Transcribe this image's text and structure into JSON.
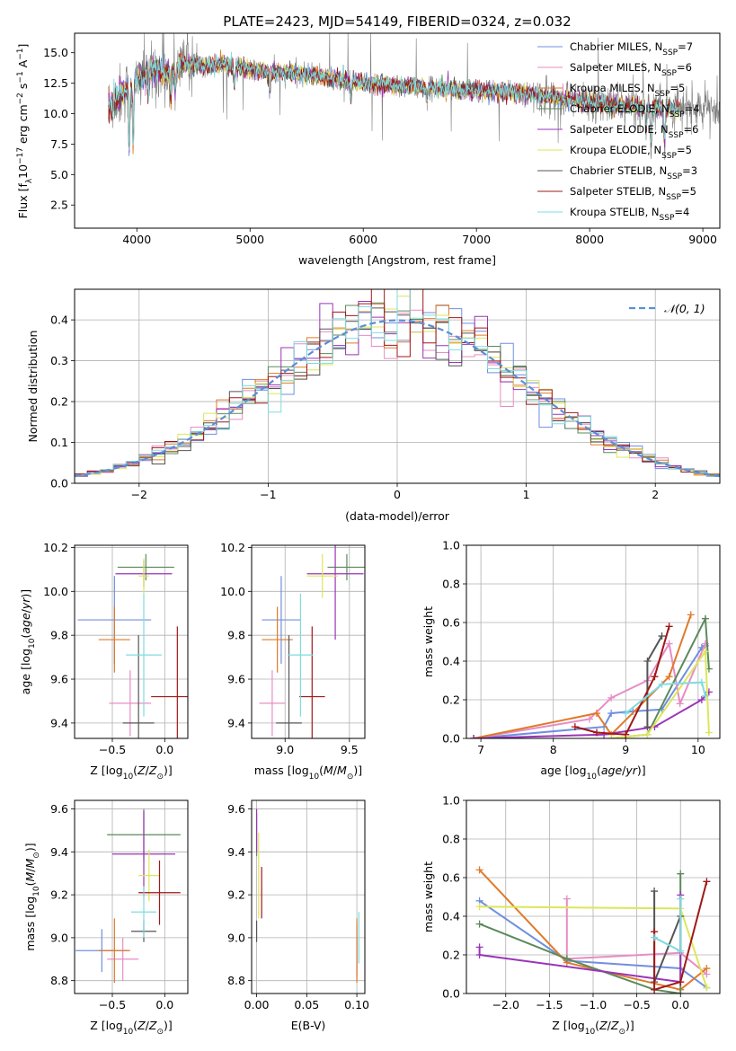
{
  "colors": {
    "Chabrier MILES": "#6f8fe0",
    "Salpeter MILES": "#e88cc4",
    "Kroupa MILES": "#e07a2a",
    "Chabrier ELODIE": "#5c8a5c",
    "Salpeter ELODIE": "#9a34b8",
    "Kroupa ELODIE": "#dde65a",
    "Chabrier STELIB": "#555555",
    "Salpeter STELIB": "#a01818",
    "Kroupa STELIB": "#7fdbe0",
    "data": "#808080",
    "normal": "#5b8ed8"
  },
  "chart_data": [
    {
      "id": "spectrum",
      "type": "line",
      "title": "PLATE=2423, MJD=54149, FIBERID=0324, z=0.032",
      "xlabel": "wavelength [Angstrom, rest frame]",
      "ylabel": "Flux [f_λ 10^-17 erg cm^-2 s^-1 A^-1]",
      "xlim": [
        3450,
        9150
      ],
      "ylim": [
        0.6,
        16.6
      ],
      "xticks": [
        "4000",
        "5000",
        "6000",
        "7000",
        "8000",
        "9000"
      ],
      "yticks": [
        "2.5",
        "5.0",
        "7.5",
        "10.0",
        "12.5",
        "15.0"
      ],
      "legend": [
        {
          "name": "Chabrier MILES",
          "nssp": "7"
        },
        {
          "name": "Salpeter MILES",
          "nssp": "6"
        },
        {
          "name": "Kroupa MILES",
          "nssp": "5"
        },
        {
          "name": "Chabrier ELODIE",
          "nssp": "4"
        },
        {
          "name": "Salpeter ELODIE",
          "nssp": "6"
        },
        {
          "name": "Kroupa ELODIE",
          "nssp": "5"
        },
        {
          "name": "Chabrier STELIB",
          "nssp": "3"
        },
        {
          "name": "Salpeter STELIB",
          "nssp": "5"
        },
        {
          "name": "Kroupa STELIB",
          "nssp": "4"
        }
      ],
      "continuum": [
        [
          3750,
          10.5
        ],
        [
          3850,
          11.5
        ],
        [
          3950,
          12.3
        ],
        [
          4050,
          13.1
        ],
        [
          4150,
          13.6
        ],
        [
          4300,
          13.4
        ],
        [
          4400,
          14.2
        ],
        [
          4600,
          14.0
        ],
        [
          4800,
          14.0
        ],
        [
          5000,
          13.6
        ],
        [
          5200,
          13.4
        ],
        [
          5500,
          13.2
        ],
        [
          5800,
          12.8
        ],
        [
          6000,
          12.5
        ],
        [
          6300,
          12.3
        ],
        [
          6600,
          12.1
        ],
        [
          7000,
          11.9
        ],
        [
          7400,
          11.7
        ],
        [
          7800,
          11.2
        ],
        [
          8200,
          10.7
        ],
        [
          8600,
          10.5
        ],
        [
          9000,
          10.4
        ]
      ],
      "data_range": [
        3750,
        9150
      ],
      "model_range": [
        3750,
        8800
      ]
    },
    {
      "id": "residuals",
      "type": "step-histogram",
      "xlabel": "(data-model)/error",
      "ylabel": "Normed distribution",
      "xlim": [
        -2.5,
        2.5
      ],
      "ylim": [
        0,
        0.475
      ],
      "xticks": [
        "−2",
        "−1",
        "0",
        "1",
        "2"
      ],
      "yticks": [
        "0.0",
        "0.1",
        "0.2",
        "0.3",
        "0.4"
      ],
      "legend": "𝒩(0, 1)",
      "legend_placement": "top-right",
      "bin_width": 0.1
    },
    {
      "id": "age-vs-Z",
      "type": "errorbar",
      "xlabel": "Z [log10(Z/Z⊙)]",
      "ylabel": "age [log10(age/yr)]",
      "xlim": [
        -0.86,
        0.22
      ],
      "ylim": [
        9.33,
        10.21
      ],
      "xticks": [
        "−0.5",
        "0.0"
      ],
      "yticks": [
        "9.4",
        "9.6",
        "9.8",
        "10.0",
        "10.2"
      ],
      "points": [
        {
          "model": "Chabrier MILES",
          "x": -0.48,
          "xerr": 0.35,
          "y": 9.87,
          "yerr": 0.2
        },
        {
          "model": "Salpeter MILES",
          "x": -0.33,
          "xerr": 0.2,
          "y": 9.49,
          "yerr": 0.15
        },
        {
          "model": "Kroupa MILES",
          "x": -0.48,
          "xerr": 0.15,
          "y": 9.78,
          "yerr": 0.15
        },
        {
          "model": "Chabrier ELODIE",
          "x": -0.18,
          "xerr": 0.27,
          "y": 10.11,
          "yerr": 0.06
        },
        {
          "model": "Salpeter ELODIE",
          "x": -0.2,
          "xerr": 0.27,
          "y": 10.08,
          "yerr": 0.06
        },
        {
          "model": "Kroupa ELODIE",
          "x": -0.2,
          "xerr": 0.05,
          "y": 10.07,
          "yerr": 0.08
        },
        {
          "model": "Chabrier STELIB",
          "x": -0.25,
          "xerr": 0.15,
          "y": 9.4,
          "yerr": 0.4
        },
        {
          "model": "Salpeter STELIB",
          "x": 0.12,
          "xerr": 0.25,
          "y": 9.52,
          "yerr": 0.32
        },
        {
          "model": "Kroupa STELIB",
          "x": -0.2,
          "xerr": 0.17,
          "y": 9.71,
          "yerr": 0.28
        }
      ]
    },
    {
      "id": "age-vs-mass",
      "type": "errorbar",
      "xlabel": "mass [log10(M/M⊙)]",
      "ylabel": "",
      "xlim": [
        8.74,
        9.62
      ],
      "ylim": [
        9.33,
        10.21
      ],
      "xticks": [
        "9.0",
        "9.5"
      ],
      "yticks": [
        "9.4",
        "9.6",
        "9.8",
        "10.0",
        "10.2"
      ],
      "points": [
        {
          "model": "Chabrier MILES",
          "x": 8.97,
          "xerr": 0.15,
          "y": 9.87,
          "yerr": 0.2
        },
        {
          "model": "Salpeter MILES",
          "x": 8.9,
          "xerr": 0.1,
          "y": 9.49,
          "yerr": 0.15
        },
        {
          "model": "Kroupa MILES",
          "x": 8.94,
          "xerr": 0.12,
          "y": 9.78,
          "yerr": 0.15
        },
        {
          "model": "Chabrier ELODIE",
          "x": 9.48,
          "xerr": 0.15,
          "y": 10.11,
          "yerr": 0.06
        },
        {
          "model": "Salpeter ELODIE",
          "x": 9.39,
          "xerr": 0.22,
          "y": 10.08,
          "yerr": 0.3
        },
        {
          "model": "Kroupa ELODIE",
          "x": 9.29,
          "xerr": 0.12,
          "y": 10.07,
          "yerr": 0.1
        },
        {
          "model": "Chabrier STELIB",
          "x": 9.03,
          "xerr": 0.1,
          "y": 9.4,
          "yerr": 0.4
        },
        {
          "model": "Salpeter STELIB",
          "x": 9.21,
          "xerr": 0.1,
          "y": 9.52,
          "yerr": 0.32
        },
        {
          "model": "Kroupa STELIB",
          "x": 9.12,
          "xerr": 0.1,
          "y": 9.71,
          "yerr": 0.28
        }
      ]
    },
    {
      "id": "weight-vs-age",
      "type": "line",
      "xlabel": "age [log10(age/yr)]",
      "ylabel": "mass weight",
      "xlim": [
        6.8,
        10.3
      ],
      "ylim": [
        0,
        1
      ],
      "xticks": [
        "7",
        "8",
        "9",
        "10"
      ],
      "yticks": [
        "0.0",
        "0.2",
        "0.4",
        "0.6",
        "0.8",
        "1.0"
      ],
      "series": [
        {
          "model": "Chabrier MILES",
          "x": [
            6.9,
            8.7,
            8.8,
            9.1,
            9.5,
            10.05,
            10.1
          ],
          "y": [
            0.0,
            0.06,
            0.13,
            0.14,
            0.15,
            0.47,
            0.48
          ]
        },
        {
          "model": "Salpeter MILES",
          "x": [
            6.9,
            8.5,
            8.8,
            9.3,
            9.6,
            9.75,
            10.1
          ],
          "y": [
            0.0,
            0.1,
            0.21,
            0.3,
            0.49,
            0.18,
            0.49
          ]
        },
        {
          "model": "Kroupa MILES",
          "x": [
            6.9,
            8.6,
            8.8,
            9.6,
            9.9
          ],
          "y": [
            0.0,
            0.13,
            0.02,
            0.32,
            0.64
          ]
        },
        {
          "model": "Chabrier ELODIE",
          "x": [
            8.8,
            9.3,
            10.1,
            10.15
          ],
          "y": [
            0.0,
            0.02,
            0.62,
            0.36
          ]
        },
        {
          "model": "Salpeter ELODIE",
          "x": [
            6.9,
            8.7,
            9.4,
            10.05,
            10.15
          ],
          "y": [
            0.0,
            0.02,
            0.06,
            0.2,
            0.24
          ]
        },
        {
          "model": "Kroupa ELODIE",
          "x": [
            8.8,
            9.3,
            10.1,
            10.15
          ],
          "y": [
            0.0,
            0.02,
            0.45,
            0.03
          ]
        },
        {
          "model": "Chabrier STELIB",
          "x": [
            9.3,
            9.3,
            9.5
          ],
          "y": [
            0.06,
            0.4,
            0.53
          ]
        },
        {
          "model": "Salpeter STELIB",
          "x": [
            8.3,
            8.6,
            9.0,
            9.4,
            9.6
          ],
          "y": [
            0.06,
            0.03,
            0.02,
            0.32,
            0.58
          ]
        },
        {
          "model": "Kroupa STELIB",
          "x": [
            9.0,
            9.5,
            10.05,
            10.1
          ],
          "y": [
            0.13,
            0.28,
            0.29,
            0.22
          ]
        }
      ]
    },
    {
      "id": "mass-vs-Z",
      "type": "errorbar",
      "xlabel": "Z [log10(Z/Z⊙)]",
      "ylabel": "mass [log10(M/M⊙)]",
      "xlim": [
        -0.86,
        0.22
      ],
      "ylim": [
        8.74,
        9.64
      ],
      "xticks": [
        "−0.5",
        "0.0"
      ],
      "yticks": [
        "8.8",
        "9.0",
        "9.2",
        "9.4",
        "9.6"
      ],
      "points": [
        {
          "model": "Chabrier MILES",
          "x": -0.6,
          "xerr": 0.25,
          "y": 8.94,
          "yerr": 0.1
        },
        {
          "model": "Salpeter MILES",
          "x": -0.4,
          "xerr": 0.15,
          "y": 8.9,
          "yerr": 0.1
        },
        {
          "model": "Kroupa MILES",
          "x": -0.48,
          "xerr": 0.15,
          "y": 8.94,
          "yerr": 0.15
        },
        {
          "model": "Chabrier ELODIE",
          "x": -0.2,
          "xerr": 0.35,
          "y": 9.48,
          "yerr": 0.12
        },
        {
          "model": "Salpeter ELODIE",
          "x": -0.2,
          "xerr": 0.3,
          "y": 9.39,
          "yerr": 0.2
        },
        {
          "model": "Kroupa ELODIE",
          "x": -0.15,
          "xerr": 0.1,
          "y": 9.29,
          "yerr": 0.12
        },
        {
          "model": "Chabrier STELIB",
          "x": -0.2,
          "xerr": 0.12,
          "y": 9.03,
          "yerr": 0.05
        },
        {
          "model": "Salpeter STELIB",
          "x": -0.05,
          "xerr": 0.2,
          "y": 9.21,
          "yerr": 0.15
        },
        {
          "model": "Kroupa STELIB",
          "x": -0.2,
          "xerr": 0.12,
          "y": 9.12,
          "yerr": 0.12
        }
      ]
    },
    {
      "id": "mass-vs-ebv",
      "type": "errorbar",
      "xlabel": "E(B-V)",
      "ylabel": "",
      "xlim": [
        -0.005,
        0.108
      ],
      "ylim": [
        8.74,
        9.64
      ],
      "xticks": [
        "0.00",
        "0.05",
        "0.10"
      ],
      "yticks": [
        "8.8",
        "9.0",
        "9.2",
        "9.4",
        "9.6"
      ],
      "points": [
        {
          "model": "Chabrier MILES",
          "x": 0.1,
          "xerr": 0,
          "y": 8.94,
          "yerr": 0.12
        },
        {
          "model": "Salpeter MILES",
          "x": 0.1,
          "xerr": 0,
          "y": 8.9,
          "yerr": 0.1
        },
        {
          "model": "Kroupa MILES",
          "x": 0.1,
          "xerr": 0,
          "y": 8.94,
          "yerr": 0.15
        },
        {
          "model": "Chabrier ELODIE",
          "x": 0.0,
          "xerr": 0,
          "y": 9.48,
          "yerr": 0.1
        },
        {
          "model": "Salpeter ELODIE",
          "x": 0.0,
          "xerr": 0,
          "y": 9.5,
          "yerr": 0.1
        },
        {
          "model": "Kroupa ELODIE",
          "x": 0.002,
          "xerr": 0,
          "y": 9.29,
          "yerr": 0.2
        },
        {
          "model": "Chabrier STELIB",
          "x": 0.0,
          "xerr": 0,
          "y": 9.03,
          "yerr": 0.05
        },
        {
          "model": "Salpeter STELIB",
          "x": 0.005,
          "xerr": 0,
          "y": 9.21,
          "yerr": 0.12
        },
        {
          "model": "Kroupa STELIB",
          "x": 0.102,
          "xerr": 0,
          "y": 9.0,
          "yerr": 0.12
        }
      ]
    },
    {
      "id": "weight-vs-Z",
      "type": "line",
      "xlabel": "Z [log10(Z/Z⊙)]",
      "ylabel": "mass weight",
      "xlim": [
        -2.45,
        0.45
      ],
      "ylim": [
        0,
        1
      ],
      "xticks": [
        "−2.0",
        "−1.5",
        "−1.0",
        "−0.5",
        "0.0"
      ],
      "yticks": [
        "0.0",
        "0.2",
        "0.4",
        "0.6",
        "0.8",
        "1.0"
      ],
      "series": [
        {
          "model": "Chabrier MILES",
          "x": [
            -2.3,
            -1.3,
            0.0,
            0.3
          ],
          "y": [
            0.48,
            0.17,
            0.13,
            0.03
          ]
        },
        {
          "model": "Salpeter MILES",
          "x": [
            -1.3,
            -1.3,
            0.0,
            0.3
          ],
          "y": [
            0.49,
            0.18,
            0.21,
            0.1
          ]
        },
        {
          "model": "Kroupa MILES",
          "x": [
            -2.3,
            -1.3,
            0.0,
            0.3
          ],
          "y": [
            0.64,
            0.16,
            0.02,
            0.13
          ]
        },
        {
          "model": "Chabrier ELODIE",
          "x": [
            -2.3,
            -1.3,
            -0.3,
            0.0,
            0.0
          ],
          "y": [
            0.36,
            0.18,
            0.02,
            0.0,
            0.62
          ]
        },
        {
          "model": "Salpeter ELODIE",
          "x": [
            -2.3,
            -2.3,
            0.0,
            0.0
          ],
          "y": [
            0.24,
            0.2,
            0.06,
            0.51
          ]
        },
        {
          "model": "Kroupa ELODIE",
          "x": [
            -2.3,
            0.0,
            0.3
          ],
          "y": [
            0.45,
            0.44,
            0.03
          ]
        },
        {
          "model": "Chabrier STELIB",
          "x": [
            -0.3,
            -0.3,
            0.0
          ],
          "y": [
            0.53,
            0.06,
            0.4
          ]
        },
        {
          "model": "Salpeter STELIB",
          "x": [
            -0.3,
            -0.3,
            0.0,
            0.3
          ],
          "y": [
            0.32,
            0.02,
            0.06,
            0.58
          ]
        },
        {
          "model": "Kroupa STELIB",
          "x": [
            -0.3,
            0.0,
            0.0
          ],
          "y": [
            0.29,
            0.22,
            0.49
          ]
        }
      ]
    }
  ]
}
